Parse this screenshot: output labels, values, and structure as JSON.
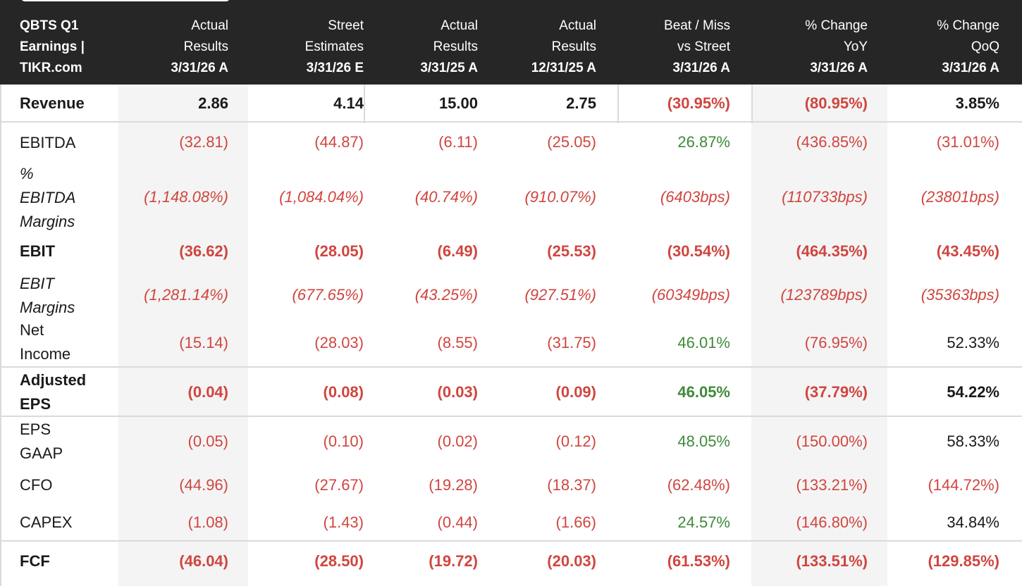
{
  "colors": {
    "header_bg": "#262626",
    "negative": "#d0453f",
    "positive": "#3f8a3a",
    "neutral": "#1a1a1a",
    "shaded_column": "#f4f4f4"
  },
  "chart_data": {
    "type": "table",
    "title": "QBTS Q1 Earnings | TIKR.com",
    "columns": [
      {
        "label": "Actual Results",
        "date": "3/31/26 A"
      },
      {
        "label": "Street Estimates",
        "date": "3/31/26 E"
      },
      {
        "label": "Actual Results",
        "date": "3/31/25 A"
      },
      {
        "label": "Actual Results",
        "date": "12/31/25 A"
      },
      {
        "label": "Beat / Miss vs Street",
        "date": "3/31/26 A"
      },
      {
        "label": "% Change YoY",
        "date": "3/31/26 A"
      },
      {
        "label": "% Change QoQ",
        "date": "3/31/26 A"
      }
    ],
    "rows": [
      {
        "label": "Revenue",
        "values": [
          "2.86",
          "4.14",
          "15.00",
          "2.75",
          "(30.95%)",
          "(80.95%)",
          "3.85%"
        ]
      },
      {
        "label": "EBITDA",
        "values": [
          "(32.81)",
          "(44.87)",
          "(6.11)",
          "(25.05)",
          "26.87%",
          "(436.85%)",
          "(31.01%)"
        ]
      },
      {
        "label": "% EBITDA Margins",
        "values": [
          "(1,148.08%)",
          "(1,084.04%)",
          "(40.74%)",
          "(910.07%)",
          "(6403bps)",
          "(110733bps)",
          "(23801bps)"
        ]
      },
      {
        "label": "EBIT",
        "values": [
          "(36.62)",
          "(28.05)",
          "(6.49)",
          "(25.53)",
          "(30.54%)",
          "(464.35%)",
          "(43.45%)"
        ]
      },
      {
        "label": "EBIT Margins",
        "values": [
          "(1,281.14%)",
          "(677.65%)",
          "(43.25%)",
          "(927.51%)",
          "(60349bps)",
          "(123789bps)",
          "(35363bps)"
        ]
      },
      {
        "label": "Net Income",
        "values": [
          "(15.14)",
          "(28.03)",
          "(8.55)",
          "(31.75)",
          "46.01%",
          "(76.95%)",
          "52.33%"
        ]
      },
      {
        "label": "Adjusted EPS",
        "values": [
          "(0.04)",
          "(0.08)",
          "(0.03)",
          "(0.09)",
          "46.05%",
          "(37.79%)",
          "54.22%"
        ]
      },
      {
        "label": "EPS GAAP",
        "values": [
          "(0.05)",
          "(0.10)",
          "(0.02)",
          "(0.12)",
          "48.05%",
          "(150.00%)",
          "58.33%"
        ]
      },
      {
        "label": "CFO",
        "values": [
          "(44.96)",
          "(27.67)",
          "(19.28)",
          "(18.37)",
          "(62.48%)",
          "(133.21%)",
          "(144.72%)"
        ]
      },
      {
        "label": "CAPEX",
        "values": [
          "(1.08)",
          "(1.43)",
          "(0.44)",
          "(1.66)",
          "24.57%",
          "(146.80%)",
          "34.84%"
        ]
      },
      {
        "label": "FCF",
        "values": [
          "(46.04)",
          "(28.50)",
          "(19.72)",
          "(20.03)",
          "(61.53%)",
          "(133.51%)",
          "(129.85%)"
        ]
      }
    ]
  }
}
